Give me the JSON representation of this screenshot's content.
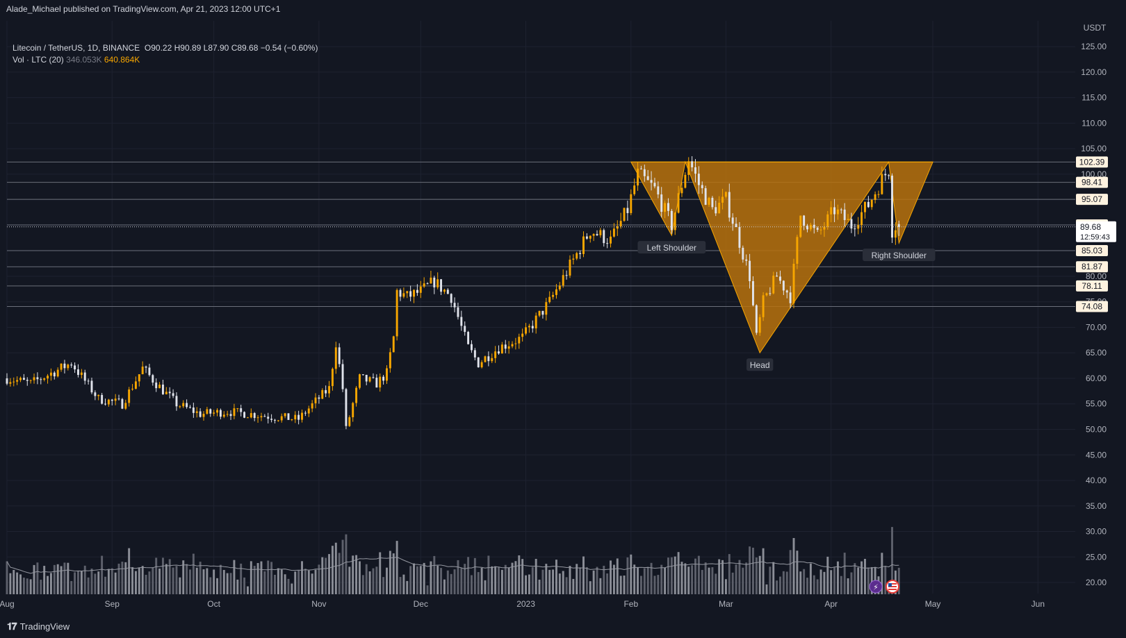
{
  "header": {
    "publisher": "Alade_Michael published on TradingView.com, Apr 21, 2023 12:00 UTC+1"
  },
  "legend": {
    "symbol": "Litecoin / TetherUS, 1D, BINANCE",
    "o_label": "O",
    "o_value": "90.22",
    "h_label": "H",
    "h_value": "90.89",
    "l_label": "L",
    "l_value": "87.90",
    "c_label": "C",
    "c_value": "89.68",
    "change": "−0.54 (−0.60%)",
    "vol_label": "Vol · LTC (20)",
    "vol_ma": "346.053K",
    "vol_value": "640.864K"
  },
  "footer": {
    "brand": "TradingView"
  },
  "colors": {
    "background": "#131722",
    "bull": "#f7a600",
    "bear": "#e0e3eb",
    "pattern_fill": "#b8720d",
    "grid": "#1e2230",
    "text": "#d1d4dc"
  },
  "chart_data": {
    "type": "candlestick",
    "currency_label": "USDT",
    "y_axis": {
      "range": [
        16,
        131
      ],
      "ticks": [
        "20.00",
        "25.00",
        "30.00",
        "35.00",
        "40.00",
        "45.00",
        "50.00",
        "55.00",
        "60.00",
        "65.00",
        "70.00",
        "75.00",
        "80.00",
        "85.00",
        "90.00",
        "95.00",
        "100.00",
        "105.00",
        "110.00",
        "115.00",
        "120.00",
        "125.00"
      ]
    },
    "x_axis": {
      "range": [
        "2022-08-01",
        "2023-06-12"
      ],
      "ticks": [
        {
          "label": "Aug",
          "date": "2022-08-01"
        },
        {
          "label": "Sep",
          "date": "2022-09-01"
        },
        {
          "label": "Oct",
          "date": "2022-10-01"
        },
        {
          "label": "Nov",
          "date": "2022-11-01"
        },
        {
          "label": "Dec",
          "date": "2022-12-01"
        },
        {
          "label": "2023",
          "date": "2023-01-01"
        },
        {
          "label": "Feb",
          "date": "2023-02-01"
        },
        {
          "label": "Mar",
          "date": "2023-03-01"
        },
        {
          "label": "Apr",
          "date": "2023-04-01"
        },
        {
          "label": "May",
          "date": "2023-05-01"
        },
        {
          "label": "Jun",
          "date": "2023-06-01"
        }
      ]
    },
    "price_anchors": [
      [
        "2022-08-01",
        60
      ],
      [
        "2022-08-08",
        59
      ],
      [
        "2022-08-14",
        61
      ],
      [
        "2022-08-20",
        63
      ],
      [
        "2022-08-28",
        56
      ],
      [
        "2022-09-04",
        55
      ],
      [
        "2022-09-10",
        62
      ],
      [
        "2022-09-14",
        59
      ],
      [
        "2022-09-20",
        55
      ],
      [
        "2022-09-27",
        53
      ],
      [
        "2022-10-05",
        53.5
      ],
      [
        "2022-10-12",
        53
      ],
      [
        "2022-10-18",
        52.5
      ],
      [
        "2022-10-26",
        52
      ],
      [
        "2022-10-31",
        55.5
      ],
      [
        "2022-11-04",
        58
      ],
      [
        "2022-11-06",
        67
      ],
      [
        "2022-11-08",
        58
      ],
      [
        "2022-11-09",
        50
      ],
      [
        "2022-11-13",
        60
      ],
      [
        "2022-11-18",
        59
      ],
      [
        "2022-11-21",
        61
      ],
      [
        "2022-11-23",
        68
      ],
      [
        "2022-11-24",
        77
      ],
      [
        "2022-11-27",
        76
      ],
      [
        "2022-12-01",
        77
      ],
      [
        "2022-12-05",
        79
      ],
      [
        "2022-12-10",
        76
      ],
      [
        "2022-12-15",
        66
      ],
      [
        "2022-12-18",
        63
      ],
      [
        "2022-12-24",
        66
      ],
      [
        "2022-12-31",
        68
      ],
      [
        "2023-01-08",
        75
      ],
      [
        "2023-01-14",
        82
      ],
      [
        "2023-01-20",
        89
      ],
      [
        "2023-01-26",
        87
      ],
      [
        "2023-01-31",
        93
      ],
      [
        "2023-02-03",
        100
      ],
      [
        "2023-02-08",
        97
      ],
      [
        "2023-02-13",
        90
      ],
      [
        "2023-02-16",
        98
      ],
      [
        "2023-02-18",
        103
      ],
      [
        "2023-02-21",
        98
      ],
      [
        "2023-02-25",
        93
      ],
      [
        "2023-03-01",
        95
      ],
      [
        "2023-03-04",
        89
      ],
      [
        "2023-03-08",
        80
      ],
      [
        "2023-03-10",
        68
      ],
      [
        "2023-03-12",
        75
      ],
      [
        "2023-03-16",
        80
      ],
      [
        "2023-03-20",
        76
      ],
      [
        "2023-03-23",
        92
      ],
      [
        "2023-03-28",
        88
      ],
      [
        "2023-04-02",
        93
      ],
      [
        "2023-04-07",
        90
      ],
      [
        "2023-04-12",
        94
      ],
      [
        "2023-04-16",
        99
      ],
      [
        "2023-04-18",
        101
      ],
      [
        "2023-04-19",
        89
      ],
      [
        "2023-04-20",
        90
      ],
      [
        "2023-04-21",
        89.68
      ]
    ],
    "current_price": "89.68",
    "countdown": "12:59:43",
    "horizontal_levels": [
      "102.39",
      "98.41",
      "95.07",
      "90.05",
      "85.03",
      "81.87",
      "78.11",
      "74.08"
    ],
    "pattern": {
      "name": "inverse head and shoulders",
      "points": [
        {
          "date": "2023-02-01",
          "price": 102.39
        },
        {
          "date": "2023-02-13",
          "price": 88.0
        },
        {
          "date": "2023-02-17",
          "price": 102.39
        },
        {
          "date": "2023-03-11",
          "price": 65.0
        },
        {
          "date": "2023-04-18",
          "price": 102.39
        },
        {
          "date": "2023-04-21",
          "price": 86.5
        },
        {
          "date": "2023-05-01",
          "price": 102.39
        }
      ],
      "labels": [
        {
          "text": "Left Shoulder",
          "date": "2023-02-13",
          "price": 88.0
        },
        {
          "text": "Head",
          "date": "2023-03-11",
          "price": 65.0
        },
        {
          "text": "Right Shoulder",
          "date": "2023-04-21",
          "price": 86.5
        }
      ]
    },
    "volume": {
      "range": [
        0,
        3000000
      ],
      "ma_length": 20
    }
  }
}
